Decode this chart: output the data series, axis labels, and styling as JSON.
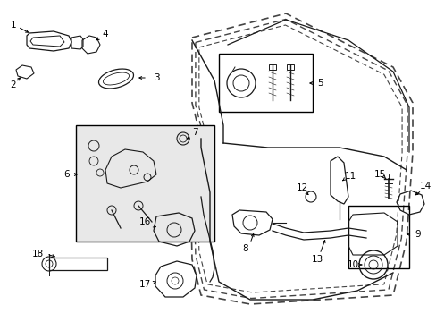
{
  "bg_color": "#ffffff",
  "fig_width": 4.89,
  "fig_height": 3.6,
  "dpi": 100,
  "lc": "#1a1a1a",
  "dc": "#444444"
}
